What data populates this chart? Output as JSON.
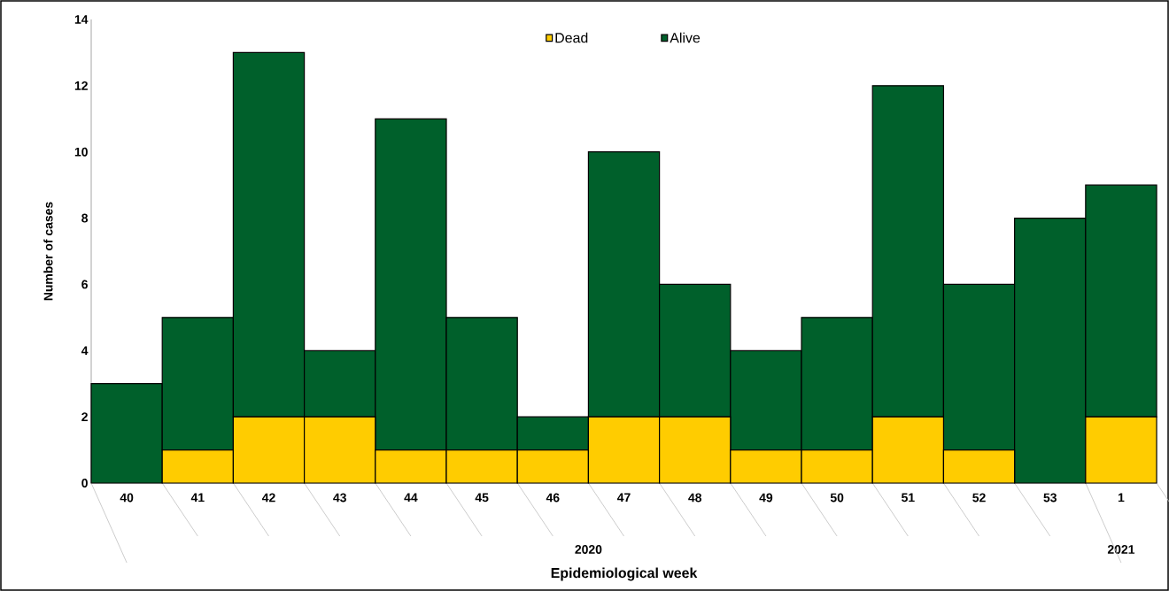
{
  "chart_data": {
    "type": "bar",
    "stacked": true,
    "xlabel": "Epidemiological week",
    "ylabel": "Number of cases",
    "categories": [
      "40",
      "41",
      "42",
      "43",
      "44",
      "45",
      "46",
      "47",
      "48",
      "49",
      "50",
      "51",
      "52",
      "53",
      "1"
    ],
    "series": [
      {
        "name": "Dead",
        "color": "#ffcc00",
        "values": [
          0,
          1,
          2,
          2,
          1,
          1,
          1,
          2,
          2,
          1,
          1,
          2,
          1,
          0,
          2
        ]
      },
      {
        "name": "Alive",
        "color": "#00602b",
        "values": [
          3,
          4,
          11,
          2,
          10,
          4,
          1,
          8,
          4,
          3,
          4,
          10,
          5,
          8,
          7
        ]
      }
    ],
    "ylim": [
      0,
      14
    ],
    "yticks": [
      0,
      2,
      4,
      6,
      8,
      10,
      12,
      14
    ],
    "legend": "top",
    "grid": false,
    "annotations": [
      "2020",
      "2021"
    ]
  }
}
